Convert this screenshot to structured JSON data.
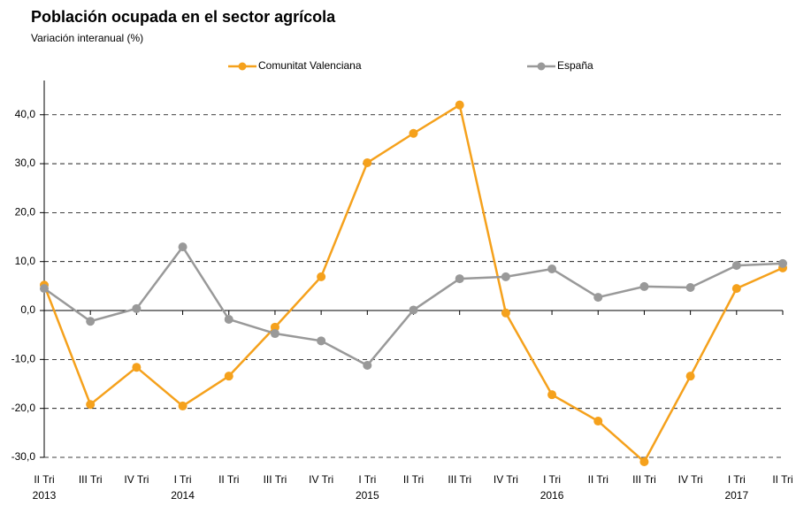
{
  "chart_data": {
    "type": "line",
    "title": "Población ocupada en el sector agrícola",
    "subtitle": "Variación interanual (%)",
    "categories": [
      "II Tri",
      "III Tri",
      "IV Tri",
      "I Tri",
      "II Tri",
      "III Tri",
      "IV Tri",
      "I Tri",
      "II Tri",
      "III Tri",
      "IV Tri",
      "I Tri",
      "II Tri",
      "III Tri",
      "IV Tri",
      "I Tri",
      "II Tri"
    ],
    "years": [
      "2013",
      null,
      null,
      "2014",
      null,
      null,
      null,
      "2015",
      null,
      null,
      null,
      "2016",
      null,
      null,
      null,
      "2017",
      null
    ],
    "series": [
      {
        "name": "Comunitat Valenciana",
        "color": "#f5a11c",
        "values": [
          5.2,
          -19.2,
          -11.6,
          -19.5,
          -13.4,
          -3.4,
          6.9,
          30.2,
          36.2,
          42.0,
          -0.5,
          -17.2,
          -22.6,
          -30.9,
          -13.4,
          4.5,
          8.7
        ]
      },
      {
        "name": "España",
        "color": "#999999",
        "values": [
          4.5,
          -2.2,
          0.4,
          13.0,
          -1.8,
          -4.7,
          -6.2,
          -11.2,
          0.1,
          6.5,
          6.9,
          8.5,
          2.7,
          4.9,
          4.7,
          9.2,
          9.6
        ]
      }
    ],
    "ylim": [
      -30,
      47
    ],
    "yticks": [
      {
        "value": -30,
        "label": "-30,0"
      },
      {
        "value": -20,
        "label": "-20,0"
      },
      {
        "value": -10,
        "label": "-10,0"
      },
      {
        "value": 0,
        "label": "0,0"
      },
      {
        "value": 10,
        "label": "10,0"
      },
      {
        "value": 20,
        "label": "20,0"
      },
      {
        "value": 30,
        "label": "30,0"
      },
      {
        "value": 40,
        "label": "40,0"
      }
    ],
    "grid": true,
    "legend": "top"
  }
}
